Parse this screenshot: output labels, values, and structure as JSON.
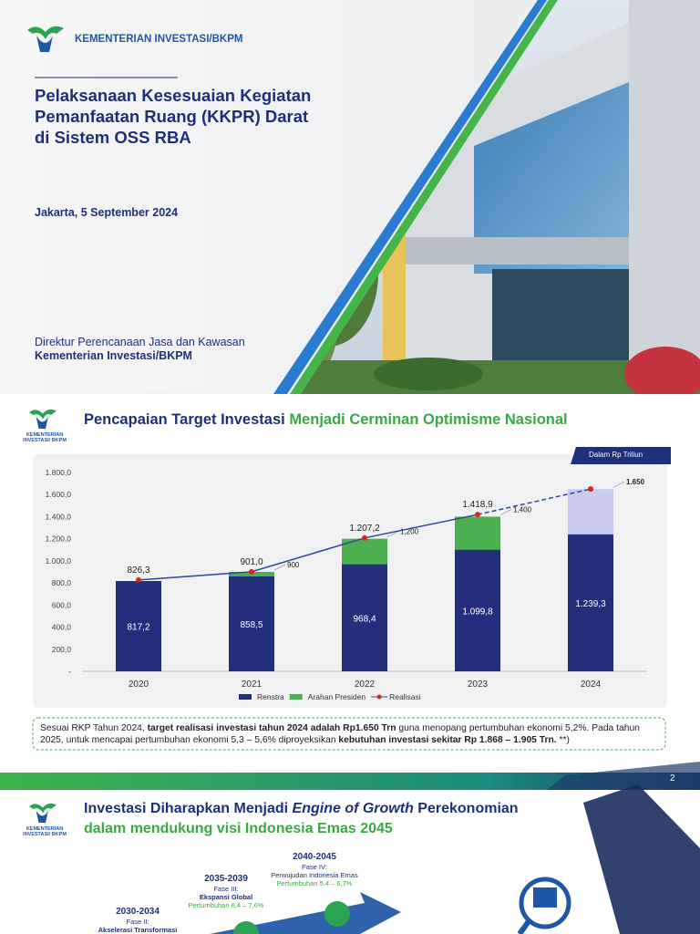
{
  "slide1": {
    "logo": "KEMENTERIAN INVESTASI/BKPM",
    "title": [
      "Pelaksanaan Kesesuaian Kegiatan",
      "Pemanfaatan Ruang (KKPR) Darat",
      "di Sistem OSS RBA"
    ],
    "date": "Jakarta, 5 September 2024",
    "presenter": "Direktur Perencanaan Jasa dan Kawasan",
    "organization": "Kementerian Investasi/BKPM"
  },
  "slide2": {
    "logo": "KEMENTERIAN INVESTASI/ BKPM",
    "title_part1": "Pencapaian Target Investasi",
    "title_part2": "Menjadi Cerminan Optimisme Nasional",
    "unit": "Dalam Rp Triliun",
    "note": [
      "Sesuai RKP Tahun 2024, ",
      "target realisasi investasi tahun 2024 adalah Rp1.650 Trn",
      " guna menopang pertumbuhan ekonomi 5,2%. Pada tahun 2025, untuk mencapai pertumbuhan ekonomi 5,3 – 5,6% diproyeksikan ",
      "kebutuhan investasi sekitar Rp 1.868 – 1.905 Trn.",
      " **)"
    ],
    "page_number": "2"
  },
  "chart_data": {
    "type": "bar",
    "categories": [
      "2020",
      "2021",
      "2022",
      "2023",
      "2024"
    ],
    "series": [
      {
        "name": "Renstra",
        "type": "bar",
        "color": "#232f7c",
        "values": [
          817.2,
          858.5,
          968.4,
          1099.8,
          1239.3
        ],
        "value_labels": [
          "817,2",
          "858,5",
          "968,4",
          "1.099,8",
          "1.239,3"
        ]
      },
      {
        "name": "Arahan Presiden",
        "type": "bar",
        "color": "#4caf50",
        "colors": [
          null,
          "#4caf50",
          "#4caf50",
          "#4caf50",
          "#cacbef"
        ],
        "values": [
          null,
          900,
          1200,
          1400,
          1650
        ],
        "value_labels": [
          null,
          "900",
          "1,200",
          "1,400",
          "1.650"
        ]
      },
      {
        "name": "Realisasi",
        "type": "line",
        "color": "#2c4a9c",
        "marker_color": "#d7261e",
        "values": [
          826.3,
          901.0,
          1207.2,
          1418.9,
          1650
        ],
        "value_labels": [
          "826,3",
          "901,0",
          "1.207,2",
          "1.418,9",
          null
        ],
        "projected": [
          false,
          false,
          false,
          false,
          true
        ]
      }
    ],
    "ylim": [
      0,
      1800
    ],
    "yticks": [
      {
        "value": 0,
        "label": "-"
      },
      {
        "value": 200,
        "label": "200,0"
      },
      {
        "value": 400,
        "label": "400,0"
      },
      {
        "value": 600,
        "label": "600,0"
      },
      {
        "value": 800,
        "label": "800,0"
      },
      {
        "value": 1000,
        "label": "1.000,0"
      },
      {
        "value": 1200,
        "label": "1.200,0"
      },
      {
        "value": 1400,
        "label": "1.400,0"
      },
      {
        "value": 1600,
        "label": "1.600,0"
      },
      {
        "value": 1800,
        "label": "1.800,0"
      }
    ],
    "grid": false
  },
  "slide3": {
    "logo": "KEMENTERIAN INVESTASI/ BKPM",
    "title_part1": "Investasi Diharapkan Menjadi ",
    "title_italic": "Engine of Growth",
    "title_part2": " Perekonomian",
    "title_line2": "dalam mendukung visi Indonesia Emas 2045",
    "phases": [
      {
        "years": "2040-2045",
        "phase": "Fase IV:",
        "name": "Perwujudan Indonesia Emas",
        "growth": "Pertumbuhan 5,4 – 6,7%"
      },
      {
        "years": "2035-2039",
        "phase": "Fase III:",
        "name": "Ekspansi Global",
        "growth": "Pertumbuhan 6,4 – 7,6%"
      },
      {
        "years": "2030-2034",
        "phase": "Fase II:",
        "name": "Akselerasi Transformasi"
      }
    ]
  }
}
